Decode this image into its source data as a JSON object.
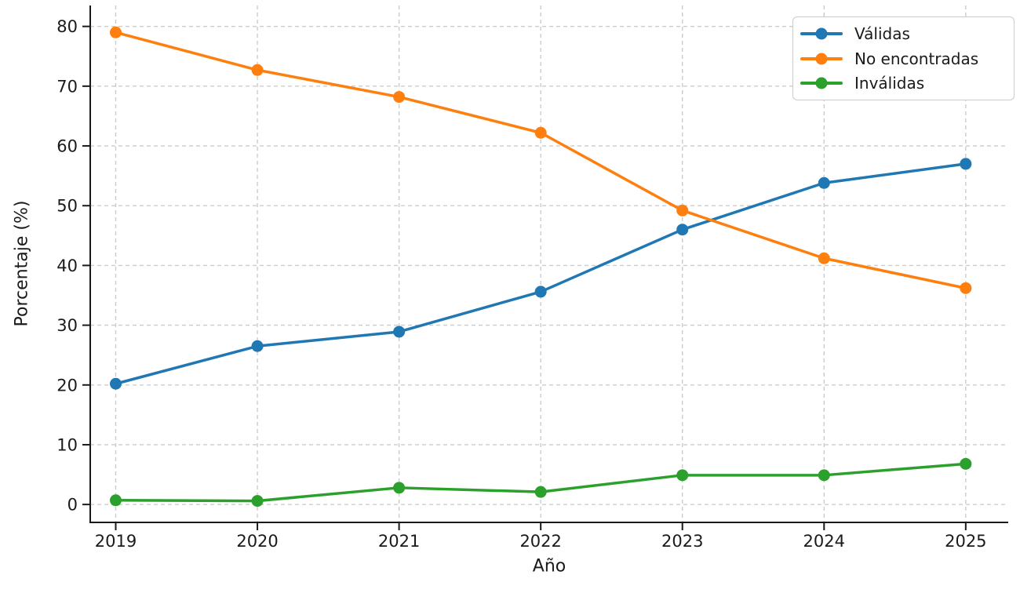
{
  "figure": {
    "background": "#ffffff",
    "text_color": "#1a1a1a",
    "grid_color": "#cccccc",
    "spine_color": "#1a1a1a"
  },
  "chart_data": {
    "type": "line",
    "title": "",
    "xlabel": "Año",
    "ylabel": "Porcentaje (%)",
    "x": [
      2019,
      2020,
      2021,
      2022,
      2023,
      2024,
      2025
    ],
    "series": [
      {
        "name": "Válidas",
        "color": "#1f77b4",
        "values": [
          20.2,
          26.5,
          28.9,
          35.6,
          46.0,
          53.8,
          57.0
        ]
      },
      {
        "name": "No encontradas",
        "color": "#ff7f0e",
        "values": [
          79.0,
          72.7,
          68.2,
          62.2,
          49.2,
          41.2,
          36.2
        ]
      },
      {
        "name": "Inválidas",
        "color": "#2ca02c",
        "values": [
          0.7,
          0.6,
          2.8,
          2.1,
          4.9,
          4.9,
          6.8
        ]
      }
    ],
    "y_ticks": [
      0,
      10,
      20,
      30,
      40,
      50,
      60,
      70,
      80
    ],
    "ylim": [
      -3,
      83.5
    ],
    "xlim": [
      2018.82,
      2025.3
    ],
    "grid": true,
    "grid_style": "dashed",
    "legend_position": "upper right",
    "marker": "circle",
    "line_width": 3.5,
    "marker_radius": 7.5
  }
}
